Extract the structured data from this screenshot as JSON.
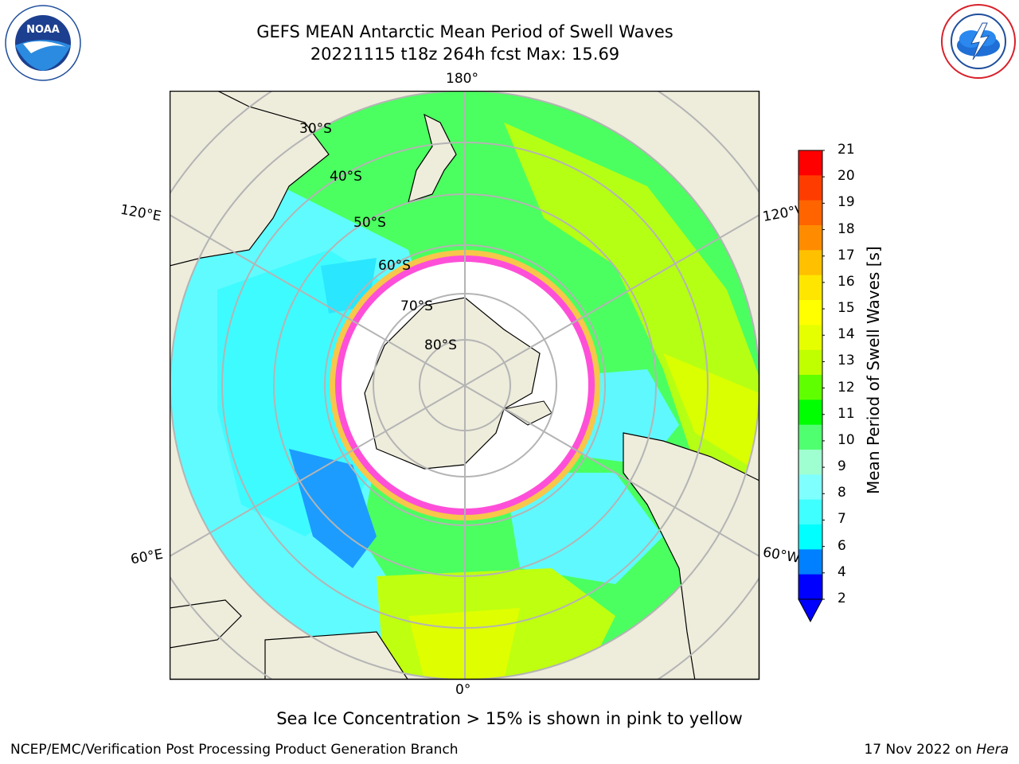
{
  "header": {
    "title_line1": "GEFS MEAN Antarctic Mean Period of Swell Waves",
    "title_line2": "20221115 t18z 264h fcst   Max: 15.69"
  },
  "logos": {
    "noaa": {
      "text": "NOAA",
      "ring_text": "NATIONAL OCEANIC AND ATMOSPHERIC ADMINISTRATION · U.S. DEPARTMENT OF COMMERCE"
    },
    "nws": {
      "ring_text": "NATIONAL WEATHER SERVICE"
    }
  },
  "map": {
    "projection": "south-polar-stereographic",
    "longitude_labels": {
      "top": "180°",
      "upper_left": "120°E",
      "upper_right": "120°W",
      "lower_left": "60°E",
      "lower_right": "60°W",
      "bottom": "0°"
    },
    "latitude_labels": [
      "30°S",
      "40°S",
      "50°S",
      "60°S",
      "70°S",
      "80°S"
    ],
    "colors": {
      "land": "#eeecdb",
      "ice_free_center": "#ffffff",
      "grid": "#b4b4b4",
      "sea_ice_pink": "#ff4fd8",
      "sea_ice_yellow": "#f9c34a"
    }
  },
  "colorbar": {
    "label": "Mean Period of Swell Waves [s]",
    "ticks": [
      "2",
      "4",
      "6",
      "7",
      "8",
      "9",
      "10",
      "11",
      "12",
      "13",
      "14",
      "15",
      "16",
      "17",
      "18",
      "19",
      "20",
      "21"
    ],
    "bins": [
      {
        "color": "#0000ff"
      },
      {
        "color": "#0080ff"
      },
      {
        "color": "#00ffff"
      },
      {
        "color": "#40ffff"
      },
      {
        "color": "#80ffff"
      },
      {
        "color": "#a0ffd0"
      },
      {
        "color": "#50ff70"
      },
      {
        "color": "#00ff00"
      },
      {
        "color": "#60ff00"
      },
      {
        "color": "#c0ff00"
      },
      {
        "color": "#e6ff00"
      },
      {
        "color": "#ffff00"
      },
      {
        "color": "#ffe600"
      },
      {
        "color": "#ffc000"
      },
      {
        "color": "#ff8c00"
      },
      {
        "color": "#ff6400"
      },
      {
        "color": "#ff3c00"
      },
      {
        "color": "#ff0000"
      }
    ],
    "extend_color": "#0000ff"
  },
  "footnote": "Sea Ice Concentration > 15% is shown in pink to yellow",
  "footer": {
    "left": "NCEP/EMC/Verification Post Processing Product Generation Branch",
    "right_date": "17 Nov 2022 on",
    "right_host": "Hera"
  }
}
